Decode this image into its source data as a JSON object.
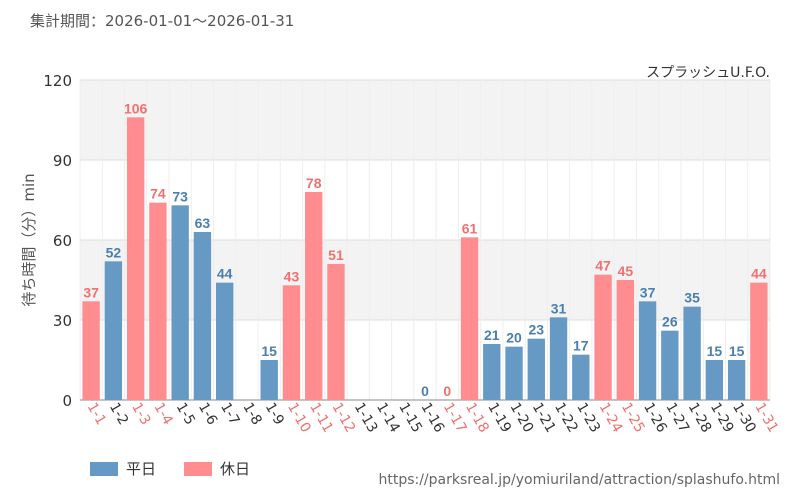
{
  "header": {
    "period_label": "集計期間：2026-01-01～2026-01-31",
    "attraction": "スプラッシュU.F.O."
  },
  "footer": {
    "url": "https://parksreal.jp/yomiuriland/attraction/splashufo.html"
  },
  "legend": {
    "weekday": "平日",
    "holiday": "休日"
  },
  "colors": {
    "weekday": "#6699c4",
    "holiday": "#ff8c8f",
    "weekday_label": "#4a7fb0",
    "holiday_label": "#f07070"
  },
  "chart_data": {
    "type": "bar",
    "ylabel": "待ち時間（分）min",
    "ylim": [
      0,
      120
    ],
    "yticks": [
      0,
      30,
      60,
      90,
      120
    ],
    "categories": [
      "1-1",
      "1-2",
      "1-3",
      "1-4",
      "1-5",
      "1-6",
      "1-7",
      "1-8",
      "1-9",
      "1-10",
      "1-11",
      "1-12",
      "1-13",
      "1-14",
      "1-15",
      "1-16",
      "1-17",
      "1-18",
      "1-19",
      "1-20",
      "1-21",
      "1-22",
      "1-23",
      "1-24",
      "1-25",
      "1-26",
      "1-27",
      "1-28",
      "1-29",
      "1-30",
      "1-31"
    ],
    "values": [
      37,
      52,
      106,
      74,
      73,
      63,
      44,
      null,
      15,
      43,
      78,
      51,
      null,
      null,
      null,
      0,
      0,
      61,
      21,
      20,
      23,
      31,
      17,
      47,
      45,
      37,
      26,
      35,
      15,
      15,
      44
    ],
    "day_type": [
      "holiday",
      "weekday",
      "holiday",
      "holiday",
      "weekday",
      "weekday",
      "weekday",
      "weekday",
      "weekday",
      "holiday",
      "holiday",
      "holiday",
      "weekday",
      "weekday",
      "weekday",
      "weekday",
      "holiday",
      "holiday",
      "weekday",
      "weekday",
      "weekday",
      "weekday",
      "weekday",
      "holiday",
      "holiday",
      "weekday",
      "weekday",
      "weekday",
      "weekday",
      "weekday",
      "holiday"
    ]
  }
}
